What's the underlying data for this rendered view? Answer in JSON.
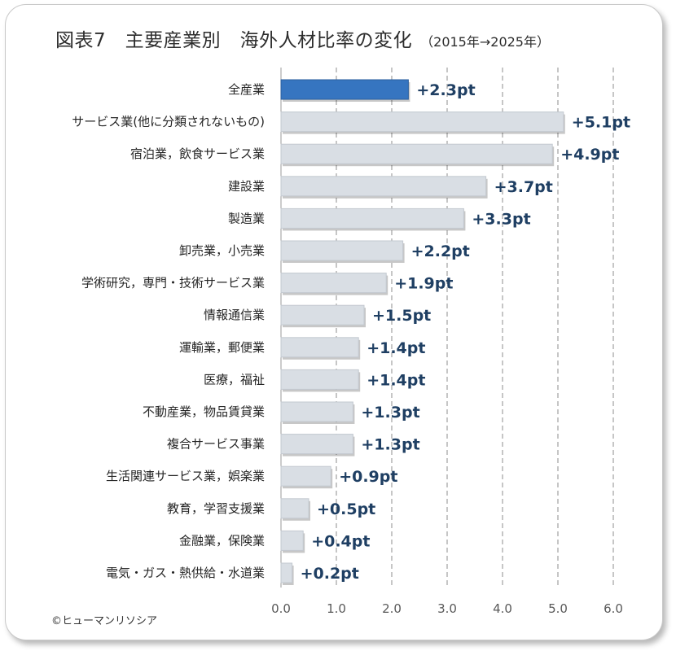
{
  "title": {
    "main": "図表7　主要産業別　海外人材比率の変化",
    "sub": "（2015年→2025年）"
  },
  "copyright": "©ヒューマンリソシア",
  "colors": {
    "highlight": "#3675c0",
    "bar": "#d9dee4",
    "value_text": "#1f3f63"
  },
  "chart_data": {
    "type": "bar",
    "orientation": "horizontal",
    "title": "図表7　主要産業別　海外人材比率の変化（2015年→2025年）",
    "categories": [
      "全産業",
      "サービス業(他に分類されないもの)",
      "宿泊業，飲食サービス業",
      "建設業",
      "製造業",
      "卸売業，小売業",
      "学術研究，専門・技術サービス業",
      "情報通信業",
      "運輸業，郵便業",
      "医療，福祉",
      "不動産業，物品賃貸業",
      "複合サービス事業",
      "生活関連サービス業，娯楽業",
      "教育，学習支援業",
      "金融業，保険業",
      "電気・ガス・熱供給・水道業"
    ],
    "values": [
      2.3,
      5.1,
      4.9,
      3.7,
      3.3,
      2.2,
      1.9,
      1.5,
      1.4,
      1.4,
      1.3,
      1.3,
      0.9,
      0.5,
      0.4,
      0.2
    ],
    "value_labels": [
      "+2.3pt",
      "+5.1pt",
      "+4.9pt",
      "+3.7pt",
      "+3.3pt",
      "+2.2pt",
      "+1.9pt",
      "+1.5pt",
      "+1.4pt",
      "+1.4pt",
      "+1.3pt",
      "+1.3pt",
      "+0.9pt",
      "+0.5pt",
      "+0.4pt",
      "+0.2pt"
    ],
    "highlight_index": 0,
    "xlim": [
      0,
      6
    ],
    "xticks": [
      "0.0",
      "1.0",
      "2.0",
      "3.0",
      "4.0",
      "5.0",
      "6.0"
    ],
    "grid": "vertical-dashed",
    "xlabel": "",
    "ylabel": ""
  }
}
